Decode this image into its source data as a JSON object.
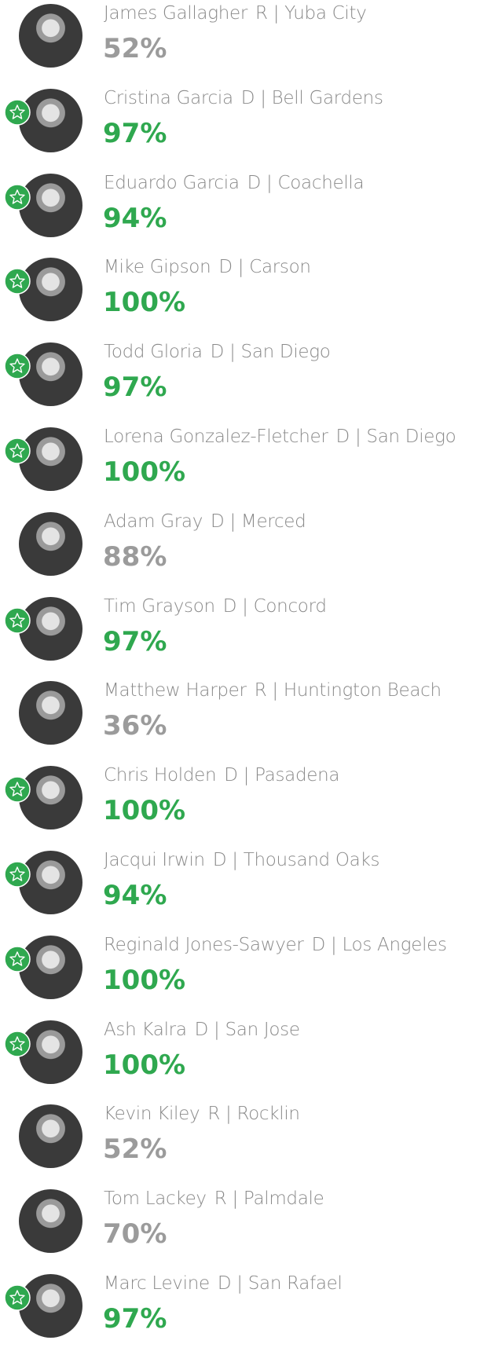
{
  "legislators": [
    {
      "name": "James Gallagher",
      "affiliation": "R | Yuba City",
      "score": "52%",
      "champion": false
    },
    {
      "name": "Cristina Garcia",
      "affiliation": "D | Bell Gardens",
      "score": "97%",
      "champion": true
    },
    {
      "name": "Eduardo Garcia",
      "affiliation": "D | Coachella",
      "score": "94%",
      "champion": true
    },
    {
      "name": "Mike Gipson",
      "affiliation": "D | Carson",
      "score": "100%",
      "champion": true
    },
    {
      "name": "Todd Gloria",
      "affiliation": "D | San Diego",
      "score": "97%",
      "champion": true
    },
    {
      "name": "Lorena Gonzalez-Fletcher",
      "affiliation": "D | San Diego",
      "score": "100%",
      "champion": true
    },
    {
      "name": "Adam Gray",
      "affiliation": "D | Merced",
      "score": "88%",
      "champion": false
    },
    {
      "name": "Tim Grayson",
      "affiliation": "D | Concord",
      "score": "97%",
      "champion": true
    },
    {
      "name": "Matthew Harper",
      "affiliation": "R | Huntington Beach",
      "score": "36%",
      "champion": false
    },
    {
      "name": "Chris Holden",
      "affiliation": "D | Pasadena",
      "score": "100%",
      "champion": true
    },
    {
      "name": "Jacqui Irwin",
      "affiliation": "D | Thousand Oaks",
      "score": "94%",
      "champion": true
    },
    {
      "name": "Reginald Jones-Sawyer",
      "affiliation": "D | Los Angeles",
      "score": "100%",
      "champion": true
    },
    {
      "name": "Ash Kalra",
      "affiliation": "D | San Jose",
      "score": "100%",
      "champion": true
    },
    {
      "name": "Kevin Kiley",
      "affiliation": "R | Rocklin",
      "score": "52%",
      "champion": false
    },
    {
      "name": "Tom Lackey",
      "affiliation": "R | Palmdale",
      "score": "70%",
      "champion": false
    },
    {
      "name": "Marc Levine",
      "affiliation": "D | San Rafael",
      "score": "97%",
      "champion": true
    }
  ]
}
